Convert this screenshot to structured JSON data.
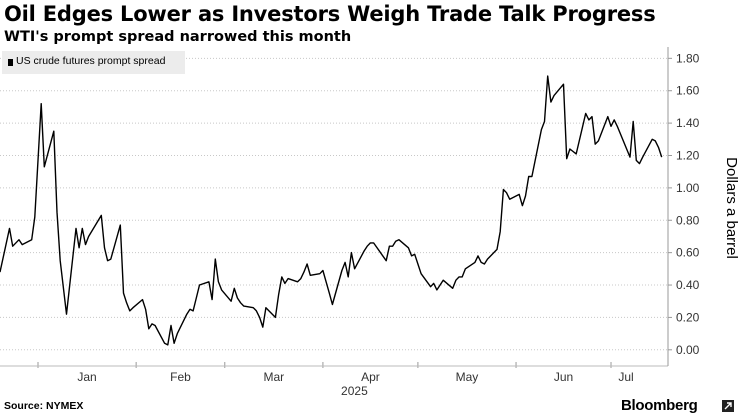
{
  "title": "Oil Edges Lower as Investors Weigh Trade Talk Progress",
  "subtitle": "WTI's prompt spread narrowed this month",
  "source": "Source: NYMEX",
  "brand": "Bloomberg",
  "chart_data": {
    "type": "line",
    "title": "Oil Edges Lower as Investors Weigh Trade Talk Progress",
    "subtitle": "WTI's prompt spread narrowed this month",
    "ylabel": "Dollars a barrel",
    "xlabel": "2025",
    "x_tick_labels": [
      "Jan",
      "Feb",
      "Mar",
      "Apr",
      "May",
      "Jun",
      "Jul"
    ],
    "year_label": "2025",
    "y_ticks": [
      0.0,
      0.2,
      0.4,
      0.6,
      0.8,
      1.0,
      1.2,
      1.4,
      1.6,
      1.8
    ],
    "y_tick_labels": [
      "0.00",
      "0.20",
      "0.40",
      "0.60",
      "0.80",
      "1.00",
      "1.20",
      "1.40",
      "1.60",
      "1.80"
    ],
    "ylim": [
      -0.1,
      1.87
    ],
    "xlim": [
      "2024-12-20",
      "2025-07-19"
    ],
    "grid": "horizontal dotted",
    "legend_position": "top-left",
    "y_axis_side": "right",
    "series": [
      {
        "name": "US crude futures prompt spread",
        "color": "#000000",
        "points": [
          [
            "2024-12-20",
            0.48
          ],
          [
            "2024-12-23",
            0.75
          ],
          [
            "2024-12-24",
            0.64
          ],
          [
            "2024-12-26",
            0.68
          ],
          [
            "2024-12-27",
            0.65
          ],
          [
            "2024-12-30",
            0.68
          ],
          [
            "2024-12-31",
            0.82
          ],
          [
            "2025-01-02",
            1.52
          ],
          [
            "2025-01-03",
            1.13
          ],
          [
            "2025-01-06",
            1.35
          ],
          [
            "2025-01-07",
            0.85
          ],
          [
            "2025-01-08",
            0.55
          ],
          [
            "2025-01-10",
            0.22
          ],
          [
            "2025-01-13",
            0.75
          ],
          [
            "2025-01-14",
            0.63
          ],
          [
            "2025-01-15",
            0.75
          ],
          [
            "2025-01-16",
            0.65
          ],
          [
            "2025-01-17",
            0.7
          ],
          [
            "2025-01-21",
            0.83
          ],
          [
            "2025-01-22",
            0.63
          ],
          [
            "2025-01-23",
            0.55
          ],
          [
            "2025-01-24",
            0.56
          ],
          [
            "2025-01-27",
            0.77
          ],
          [
            "2025-01-28",
            0.35
          ],
          [
            "2025-01-29",
            0.29
          ],
          [
            "2025-01-30",
            0.24
          ],
          [
            "2025-01-31",
            0.26
          ],
          [
            "2025-02-03",
            0.31
          ],
          [
            "2025-02-04",
            0.25
          ],
          [
            "2025-02-05",
            0.13
          ],
          [
            "2025-02-06",
            0.16
          ],
          [
            "2025-02-07",
            0.15
          ],
          [
            "2025-02-10",
            0.04
          ],
          [
            "2025-02-11",
            0.03
          ],
          [
            "2025-02-12",
            0.15
          ],
          [
            "2025-02-13",
            0.04
          ],
          [
            "2025-02-14",
            0.1
          ],
          [
            "2025-02-17",
            0.22
          ],
          [
            "2025-02-18",
            0.25
          ],
          [
            "2025-02-19",
            0.24
          ],
          [
            "2025-02-20",
            0.32
          ],
          [
            "2025-02-21",
            0.4
          ],
          [
            "2025-02-24",
            0.42
          ],
          [
            "2025-02-25",
            0.31
          ],
          [
            "2025-02-26",
            0.56
          ],
          [
            "2025-02-27",
            0.42
          ],
          [
            "2025-02-28",
            0.37
          ],
          [
            "2025-03-03",
            0.3
          ],
          [
            "2025-03-04",
            0.38
          ],
          [
            "2025-03-05",
            0.32
          ],
          [
            "2025-03-06",
            0.29
          ],
          [
            "2025-03-07",
            0.27
          ],
          [
            "2025-03-10",
            0.26
          ],
          [
            "2025-03-11",
            0.24
          ],
          [
            "2025-03-12",
            0.2
          ],
          [
            "2025-03-13",
            0.14
          ],
          [
            "2025-03-14",
            0.26
          ],
          [
            "2025-03-17",
            0.2
          ],
          [
            "2025-03-18",
            0.34
          ],
          [
            "2025-03-19",
            0.45
          ],
          [
            "2025-03-20",
            0.41
          ],
          [
            "2025-03-21",
            0.44
          ],
          [
            "2025-03-24",
            0.42
          ],
          [
            "2025-03-25",
            0.44
          ],
          [
            "2025-03-26",
            0.48
          ],
          [
            "2025-03-27",
            0.53
          ],
          [
            "2025-03-28",
            0.46
          ],
          [
            "2025-03-31",
            0.47
          ],
          [
            "2025-04-01",
            0.49
          ],
          [
            "2025-04-02",
            0.42
          ],
          [
            "2025-04-03",
            0.35
          ],
          [
            "2025-04-04",
            0.28
          ],
          [
            "2025-04-07",
            0.49
          ],
          [
            "2025-04-08",
            0.54
          ],
          [
            "2025-04-09",
            0.45
          ],
          [
            "2025-04-10",
            0.6
          ],
          [
            "2025-04-11",
            0.5
          ],
          [
            "2025-04-14",
            0.61
          ],
          [
            "2025-04-15",
            0.64
          ],
          [
            "2025-04-16",
            0.66
          ],
          [
            "2025-04-17",
            0.66
          ],
          [
            "2025-04-21",
            0.55
          ],
          [
            "2025-04-22",
            0.64
          ],
          [
            "2025-04-23",
            0.64
          ],
          [
            "2025-04-24",
            0.67
          ],
          [
            "2025-04-25",
            0.68
          ],
          [
            "2025-04-28",
            0.63
          ],
          [
            "2025-04-29",
            0.58
          ],
          [
            "2025-04-30",
            0.59
          ],
          [
            "2025-05-01",
            0.53
          ],
          [
            "2025-05-02",
            0.47
          ],
          [
            "2025-05-05",
            0.39
          ],
          [
            "2025-05-06",
            0.41
          ],
          [
            "2025-05-07",
            0.37
          ],
          [
            "2025-05-08",
            0.4
          ],
          [
            "2025-05-09",
            0.43
          ],
          [
            "2025-05-12",
            0.38
          ],
          [
            "2025-05-13",
            0.43
          ],
          [
            "2025-05-14",
            0.45
          ],
          [
            "2025-05-15",
            0.45
          ],
          [
            "2025-05-16",
            0.5
          ],
          [
            "2025-05-19",
            0.54
          ],
          [
            "2025-05-20",
            0.58
          ],
          [
            "2025-05-21",
            0.54
          ],
          [
            "2025-05-22",
            0.53
          ],
          [
            "2025-05-23",
            0.56
          ],
          [
            "2025-05-26",
            0.62
          ],
          [
            "2025-05-27",
            0.73
          ],
          [
            "2025-05-28",
            0.99
          ],
          [
            "2025-05-29",
            0.97
          ],
          [
            "2025-05-30",
            0.93
          ],
          [
            "2025-06-02",
            0.96
          ],
          [
            "2025-06-03",
            0.89
          ],
          [
            "2025-06-04",
            0.95
          ],
          [
            "2025-06-05",
            1.07
          ],
          [
            "2025-06-06",
            1.07
          ],
          [
            "2025-06-09",
            1.36
          ],
          [
            "2025-06-10",
            1.41
          ],
          [
            "2025-06-11",
            1.69
          ],
          [
            "2025-06-12",
            1.53
          ],
          [
            "2025-06-13",
            1.57
          ],
          [
            "2025-06-16",
            1.64
          ],
          [
            "2025-06-17",
            1.18
          ],
          [
            "2025-06-18",
            1.24
          ],
          [
            "2025-06-20",
            1.21
          ],
          [
            "2025-06-23",
            1.46
          ],
          [
            "2025-06-24",
            1.42
          ],
          [
            "2025-06-25",
            1.44
          ],
          [
            "2025-06-26",
            1.27
          ],
          [
            "2025-06-27",
            1.29
          ],
          [
            "2025-06-30",
            1.44
          ],
          [
            "2025-07-01",
            1.38
          ],
          [
            "2025-07-02",
            1.42
          ],
          [
            "2025-07-03",
            1.38
          ],
          [
            "2025-07-07",
            1.19
          ],
          [
            "2025-07-08",
            1.41
          ],
          [
            "2025-07-09",
            1.17
          ],
          [
            "2025-07-10",
            1.15
          ],
          [
            "2025-07-11",
            1.19
          ],
          [
            "2025-07-14",
            1.3
          ],
          [
            "2025-07-15",
            1.29
          ],
          [
            "2025-07-16",
            1.25
          ],
          [
            "2025-07-17",
            1.19
          ]
        ]
      }
    ]
  }
}
